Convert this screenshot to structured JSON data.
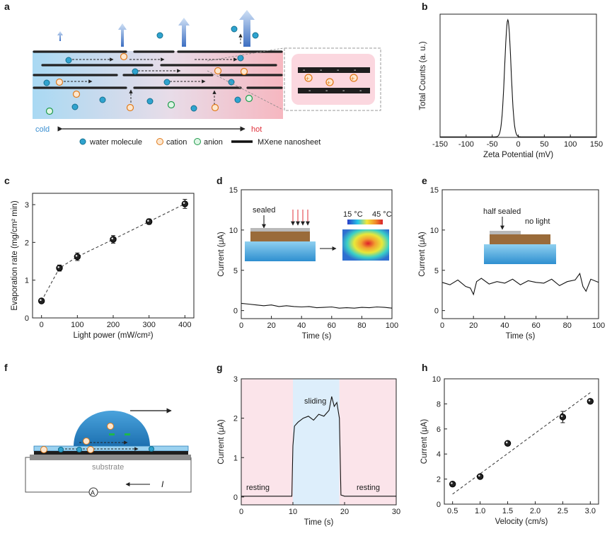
{
  "panels": {
    "a": {
      "label": "a",
      "cold": "cold",
      "hot": "hot",
      "legend": [
        "water molecule",
        "cation",
        "anion",
        "MXene nanosheet"
      ],
      "ion_signs": {
        "cation": "+",
        "anion": "−",
        "surface": "-"
      }
    },
    "b": {
      "label": "b"
    },
    "c": {
      "label": "c"
    },
    "d": {
      "label": "d",
      "inset": {
        "sealed": "sealed",
        "t_low": "15 °C",
        "t_high": "45 °C"
      }
    },
    "e": {
      "label": "e",
      "inset": {
        "half_sealed": "half sealed",
        "no_light": "no light"
      }
    },
    "f": {
      "label": "f",
      "substrate": "substrate",
      "ammeter": "A",
      "current_symbol": "I"
    },
    "g": {
      "label": "g",
      "regions": [
        "resting",
        "sliding",
        "resting"
      ]
    },
    "h": {
      "label": "h"
    }
  },
  "chart_data": [
    {
      "id": "b",
      "type": "line",
      "title": "",
      "xlabel": "Zeta Potential (mV)",
      "ylabel": "Total Counts (a. u.)",
      "xlim": [
        -150,
        150
      ],
      "xticks": [
        -150,
        -100,
        -50,
        0,
        50,
        100,
        150
      ],
      "peak_center": -20,
      "peak_width": 6,
      "peak_height": 0.95
    },
    {
      "id": "c",
      "type": "scatter",
      "xlabel": "Light power (mW/cm²)",
      "ylabel": "Evaporation rate (mg/cm² min)",
      "xlim": [
        -25,
        425
      ],
      "ylim": [
        0,
        3.3
      ],
      "xticks": [
        0,
        100,
        200,
        300,
        400
      ],
      "yticks": [
        0,
        1,
        2,
        3
      ],
      "x": [
        0,
        50,
        100,
        200,
        300,
        400
      ],
      "y": [
        0.45,
        1.32,
        1.62,
        2.08,
        2.55,
        3.02
      ],
      "err": [
        0.04,
        0.08,
        0.1,
        0.1,
        0.07,
        0.12
      ]
    },
    {
      "id": "d",
      "type": "line",
      "xlabel": "Time (s)",
      "ylabel": "Current (μA)",
      "xlim": [
        0,
        100
      ],
      "ylim": [
        -1,
        15
      ],
      "xticks": [
        0,
        20,
        40,
        60,
        80,
        100
      ],
      "yticks": [
        0,
        5,
        10,
        15
      ],
      "x": [
        0,
        5,
        10,
        15,
        20,
        25,
        30,
        35,
        40,
        45,
        50,
        55,
        60,
        65,
        70,
        75,
        80,
        85,
        90,
        95,
        100
      ],
      "y": [
        0.9,
        0.8,
        0.7,
        0.6,
        0.7,
        0.5,
        0.6,
        0.5,
        0.45,
        0.5,
        0.35,
        0.4,
        0.45,
        0.3,
        0.35,
        0.3,
        0.4,
        0.35,
        0.45,
        0.4,
        0.3
      ]
    },
    {
      "id": "e",
      "type": "line",
      "xlabel": "Time (s)",
      "ylabel": "Current (μA)",
      "xlim": [
        0,
        100
      ],
      "ylim": [
        -1,
        15
      ],
      "xticks": [
        0,
        20,
        40,
        60,
        80,
        100
      ],
      "yticks": [
        0,
        5,
        10,
        15
      ],
      "x": [
        0,
        5,
        10,
        15,
        18,
        20,
        22,
        25,
        30,
        35,
        40,
        45,
        50,
        55,
        60,
        65,
        70,
        75,
        80,
        85,
        88,
        90,
        92,
        95,
        100
      ],
      "y": [
        3.5,
        3.2,
        3.8,
        3.0,
        2.8,
        2.0,
        3.6,
        4.0,
        3.3,
        3.6,
        3.4,
        3.9,
        3.2,
        3.7,
        3.5,
        3.4,
        3.9,
        3.1,
        3.6,
        3.8,
        4.6,
        3.0,
        2.4,
        3.9,
        3.5
      ]
    },
    {
      "id": "g",
      "type": "line",
      "xlabel": "Time (s)",
      "ylabel": "Current (μA)",
      "xlim": [
        0,
        30
      ],
      "ylim": [
        -0.2,
        3
      ],
      "xticks": [
        0,
        10,
        20,
        30
      ],
      "yticks": [
        0,
        1,
        2,
        3
      ],
      "regions": [
        {
          "from": 0,
          "to": 10,
          "color": "#fbe4ea"
        },
        {
          "from": 10,
          "to": 19,
          "color": "#ddeefb"
        },
        {
          "from": 19,
          "to": 30,
          "color": "#fbe4ea"
        }
      ],
      "x": [
        0,
        5,
        9.8,
        10,
        10.3,
        11,
        12,
        13,
        14,
        15,
        16,
        17,
        17.5,
        18,
        18.5,
        19,
        19.3,
        20,
        25,
        30
      ],
      "y": [
        0.02,
        0.02,
        0.02,
        1.3,
        1.8,
        1.9,
        2.0,
        2.05,
        1.95,
        2.1,
        2.05,
        2.2,
        2.55,
        2.3,
        2.4,
        2.0,
        0.05,
        0.02,
        0.02,
        0.02
      ]
    },
    {
      "id": "h",
      "type": "scatter",
      "xlabel": "Velocity (cm/s)",
      "ylabel": "Current (μA)",
      "xlim": [
        0.35,
        3.15
      ],
      "ylim": [
        0,
        10
      ],
      "xticks": [
        0.5,
        1.0,
        1.5,
        2.0,
        2.5,
        3.0
      ],
      "yticks": [
        0,
        2,
        4,
        6,
        8,
        10
      ],
      "x": [
        0.5,
        1.0,
        1.5,
        2.5,
        3.0
      ],
      "y": [
        1.6,
        2.2,
        4.85,
        6.95,
        8.2
      ],
      "err": [
        0.12,
        0.1,
        0.12,
        0.45,
        0.15
      ],
      "fit": {
        "x": [
          0.5,
          3.0
        ],
        "y": [
          0.8,
          8.9
        ]
      }
    }
  ]
}
